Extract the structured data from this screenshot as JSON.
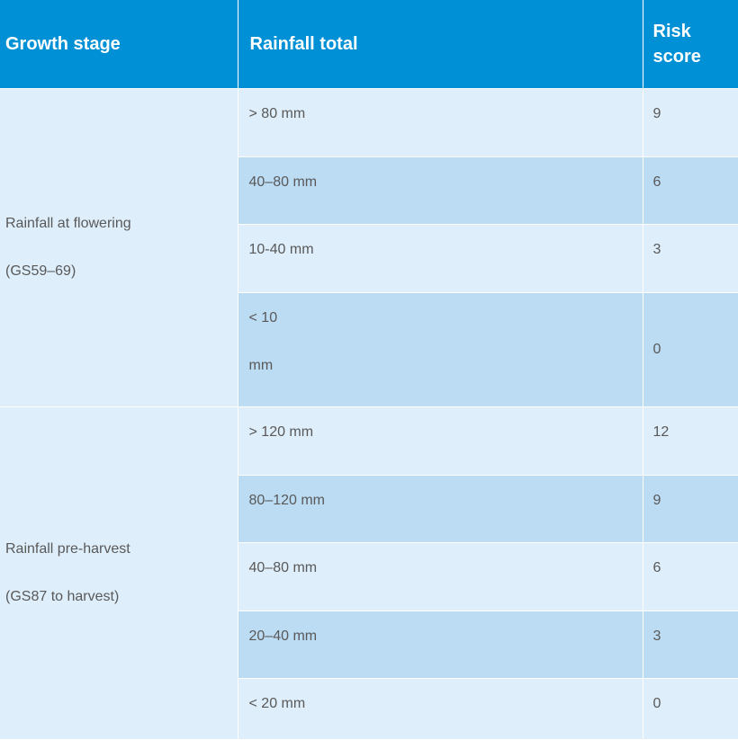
{
  "table": {
    "headers": {
      "growth_stage": "Growth stage",
      "rainfall_total": "Rainfall total",
      "risk_score_line1": "Risk",
      "risk_score_line2": "score"
    },
    "groups": [
      {
        "stage_line1": "Rainfall at flowering",
        "stage_line2": "(GS59–69)",
        "rows": [
          {
            "rainfall": "> 80 mm",
            "score": "9"
          },
          {
            "rainfall": "40–80 mm",
            "score": "6"
          },
          {
            "rainfall": "10-40 mm",
            "score": "3"
          },
          {
            "rainfall_line1": "< 10",
            "rainfall_line2": "mm",
            "score": "0"
          }
        ]
      },
      {
        "stage_line1": "Rainfall pre-harvest",
        "stage_line2": "(GS87 to harvest)",
        "rows": [
          {
            "rainfall": "> 120 mm",
            "score": "12"
          },
          {
            "rainfall": "80–120 mm",
            "score": "9"
          },
          {
            "rainfall": "40–80 mm",
            "score": "6"
          },
          {
            "rainfall": "20–40 mm",
            "score": "3"
          },
          {
            "rainfall": "< 20 mm",
            "score": "0"
          }
        ]
      }
    ]
  },
  "colors": {
    "header_bg": "#0090d5",
    "row_light": "#deeefb",
    "row_dark": "#bcdcf4",
    "body_text": "#595959"
  }
}
